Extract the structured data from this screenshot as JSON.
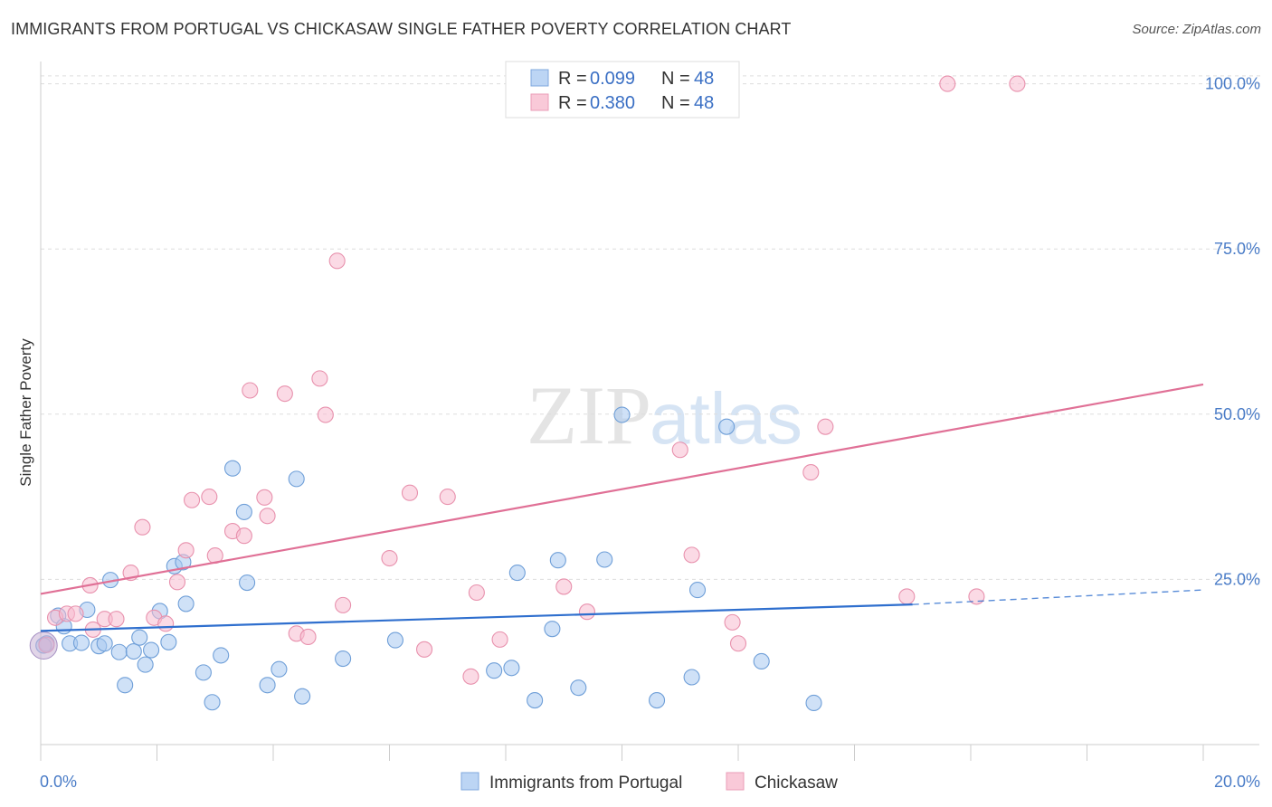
{
  "title": "IMMIGRANTS FROM PORTUGAL VS CHICKASAW SINGLE FATHER POVERTY CORRELATION CHART",
  "source": "Source: ZipAtlas.com",
  "watermark": {
    "zip": "ZIP",
    "atlas": "atlas"
  },
  "chart_data": {
    "type": "scatter",
    "title": "IMMIGRANTS FROM PORTUGAL VS CHICKASAW SINGLE FATHER POVERTY CORRELATION CHART",
    "ylabel": "Single Father Poverty",
    "xlabel": "",
    "xlim": [
      0,
      20
    ],
    "ylim": [
      0,
      102
    ],
    "x_tick_labels": [
      "0.0%",
      "20.0%"
    ],
    "y_ticks": [
      {
        "value": 25,
        "label": "25.0%"
      },
      {
        "value": 50,
        "label": "50.0%"
      },
      {
        "value": 75,
        "label": "75.0%"
      },
      {
        "value": 100,
        "label": "100.0%"
      }
    ],
    "grid": true,
    "legend": {
      "position": "top-center",
      "entries": [
        {
          "r_label": "R =",
          "r_value": "0.099",
          "n_label": "N =",
          "n_value": "48"
        },
        {
          "r_label": "R =",
          "r_value": "0.380",
          "n_label": "N =",
          "n_value": "48"
        }
      ]
    },
    "series": [
      {
        "name": "Immigrants from Portugal",
        "color": "#a8c8f0",
        "stroke": "#6f9fd8",
        "trend_color": "#2f6fce",
        "trend": {
          "x0": 0,
          "y0": 17.2,
          "x1": 15,
          "y1": 21.2,
          "dash_to": 20,
          "dash_y": 23.4
        },
        "points": [
          [
            0.1,
            15.3
          ],
          [
            0.3,
            19.5
          ],
          [
            0.4,
            17.9
          ],
          [
            0.5,
            15.3
          ],
          [
            0.7,
            15.4
          ],
          [
            0.8,
            20.4
          ],
          [
            1.0,
            14.9
          ],
          [
            1.1,
            15.3
          ],
          [
            1.2,
            24.9
          ],
          [
            1.35,
            14.0
          ],
          [
            1.45,
            9.0
          ],
          [
            1.6,
            14.1
          ],
          [
            1.7,
            16.2
          ],
          [
            1.8,
            12.1
          ],
          [
            1.9,
            14.3
          ],
          [
            2.05,
            20.2
          ],
          [
            2.2,
            15.5
          ],
          [
            2.3,
            27.0
          ],
          [
            2.45,
            27.6
          ],
          [
            2.5,
            21.3
          ],
          [
            2.8,
            10.9
          ],
          [
            2.95,
            6.4
          ],
          [
            3.1,
            13.5
          ],
          [
            3.3,
            41.8
          ],
          [
            3.5,
            35.2
          ],
          [
            3.55,
            24.5
          ],
          [
            3.9,
            9.0
          ],
          [
            4.1,
            11.4
          ],
          [
            4.4,
            40.2
          ],
          [
            4.5,
            7.3
          ],
          [
            5.2,
            13.0
          ],
          [
            6.1,
            15.8
          ],
          [
            7.8,
            11.2
          ],
          [
            8.1,
            11.6
          ],
          [
            8.2,
            26.0
          ],
          [
            8.5,
            6.7
          ],
          [
            8.8,
            17.5
          ],
          [
            8.9,
            27.9
          ],
          [
            9.25,
            8.6
          ],
          [
            9.7,
            28.0
          ],
          [
            10.0,
            49.9
          ],
          [
            10.6,
            6.7
          ],
          [
            11.2,
            10.2
          ],
          [
            11.3,
            23.4
          ],
          [
            11.8,
            48.1
          ],
          [
            12.4,
            12.6
          ],
          [
            13.3,
            6.3
          ],
          [
            0.05,
            15.0
          ]
        ]
      },
      {
        "name": "Chickasaw",
        "color": "#f7bcd0",
        "stroke": "#e891ad",
        "trend_color": "#e07096",
        "trend": {
          "x0": 0,
          "y0": 22.8,
          "x1": 20,
          "y1": 54.5
        },
        "points": [
          [
            0.1,
            15.1
          ],
          [
            0.25,
            19.2
          ],
          [
            0.45,
            19.8
          ],
          [
            0.6,
            19.8
          ],
          [
            0.85,
            24.1
          ],
          [
            0.9,
            17.4
          ],
          [
            1.1,
            19.0
          ],
          [
            1.3,
            19.0
          ],
          [
            1.55,
            26.0
          ],
          [
            1.75,
            32.9
          ],
          [
            1.95,
            19.2
          ],
          [
            2.15,
            18.3
          ],
          [
            2.35,
            24.6
          ],
          [
            2.5,
            29.4
          ],
          [
            2.6,
            37.0
          ],
          [
            2.9,
            37.5
          ],
          [
            3.0,
            28.6
          ],
          [
            3.3,
            32.3
          ],
          [
            3.5,
            31.6
          ],
          [
            3.6,
            53.6
          ],
          [
            3.85,
            37.4
          ],
          [
            3.9,
            34.6
          ],
          [
            4.2,
            53.1
          ],
          [
            4.4,
            16.8
          ],
          [
            4.6,
            16.3
          ],
          [
            4.8,
            55.4
          ],
          [
            4.9,
            49.9
          ],
          [
            5.1,
            73.2
          ],
          [
            5.2,
            21.1
          ],
          [
            6.0,
            28.2
          ],
          [
            6.35,
            38.1
          ],
          [
            6.6,
            14.4
          ],
          [
            7.0,
            37.5
          ],
          [
            7.4,
            10.3
          ],
          [
            7.5,
            23.0
          ],
          [
            7.9,
            15.9
          ],
          [
            9.0,
            23.9
          ],
          [
            9.4,
            20.1
          ],
          [
            11.0,
            44.6
          ],
          [
            11.2,
            28.7
          ],
          [
            11.9,
            18.5
          ],
          [
            12.0,
            15.3
          ],
          [
            13.25,
            41.2
          ],
          [
            13.5,
            48.1
          ],
          [
            14.9,
            22.4
          ],
          [
            15.6,
            100.0
          ],
          [
            16.1,
            22.4
          ],
          [
            16.8,
            100.0
          ]
        ]
      }
    ]
  }
}
